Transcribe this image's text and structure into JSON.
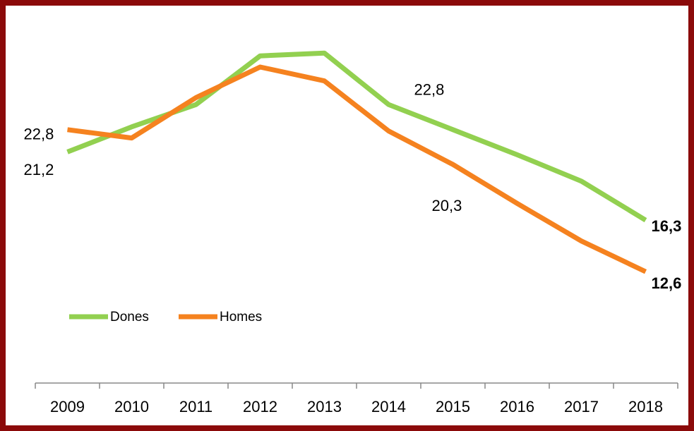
{
  "chart_data": {
    "type": "line",
    "categories": [
      "2009",
      "2010",
      "2011",
      "2012",
      "2013",
      "2014",
      "2015",
      "2016",
      "2017",
      "2018"
    ],
    "series": [
      {
        "name": "Dones",
        "color": "#92d050",
        "values": [
          21.2,
          23.0,
          24.6,
          28.1,
          28.3,
          24.6,
          22.8,
          21.0,
          19.1,
          16.3
        ],
        "value_labels": [
          "21,2",
          null,
          null,
          null,
          null,
          null,
          "22,8",
          null,
          null,
          "16,3"
        ]
      },
      {
        "name": "Homes",
        "color": "#f5821f",
        "values": [
          22.8,
          22.2,
          25.1,
          27.3,
          26.3,
          22.7,
          20.3,
          17.5,
          14.8,
          12.6
        ],
        "value_labels": [
          "22,8",
          null,
          null,
          null,
          null,
          null,
          "20,3",
          null,
          null,
          "12,6"
        ]
      }
    ],
    "ylim": [
      4.6,
      31.1
    ],
    "legend": "center-left"
  }
}
